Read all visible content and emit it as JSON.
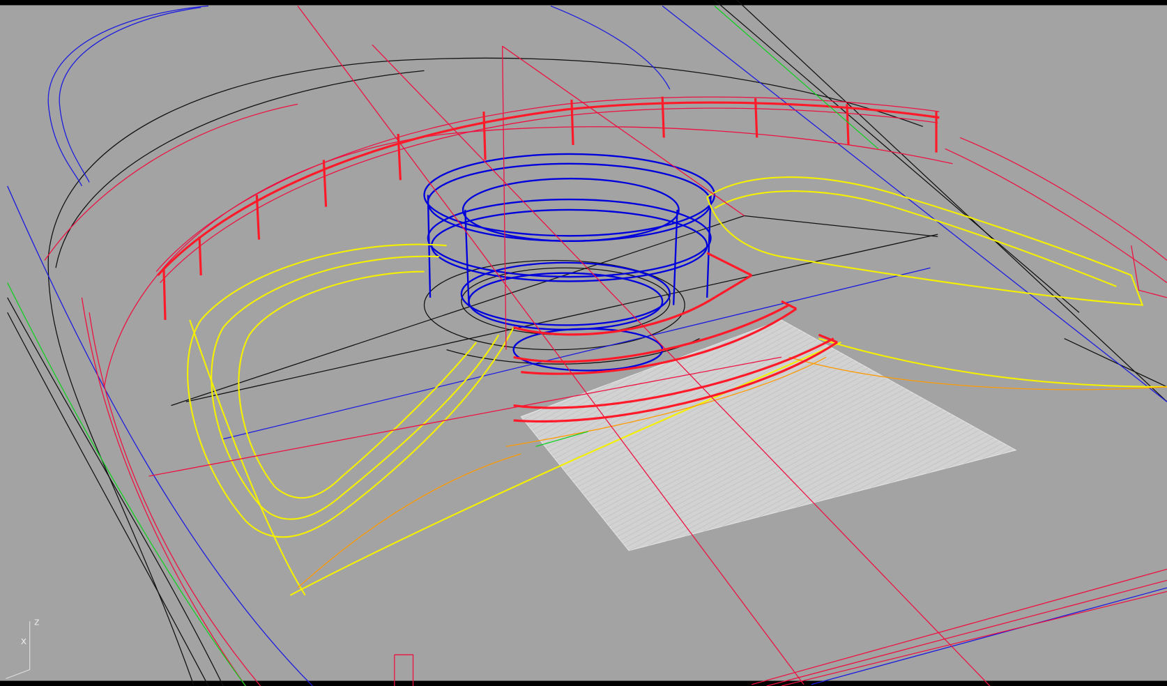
{
  "viewport": {
    "axis_labels": {
      "z": "z",
      "x": "x"
    }
  }
}
